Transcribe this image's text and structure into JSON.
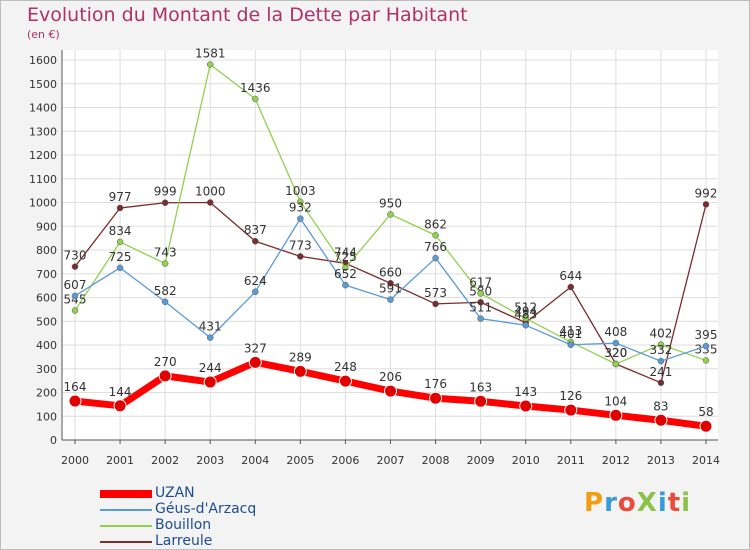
{
  "title": "Evolution du Montant de la Dette par Habitant",
  "subtitle": "(en €)",
  "logo": {
    "text": "ProXiti",
    "colors": [
      "#f39c12",
      "#3a9ad9",
      "#e74c3c",
      "#8bc34a",
      "#3a9ad9",
      "#e74c3c",
      "#8bc34a"
    ]
  },
  "legend": [
    {
      "label": "UZAN",
      "color": "#ff0000",
      "thick": true
    },
    {
      "label": "Géus-d'Arzacq",
      "color": "#5b9bd5",
      "thick": false
    },
    {
      "label": "Bouillon",
      "color": "#92d050",
      "thick": false
    },
    {
      "label": "Larreule",
      "color": "#7b2c2c",
      "thick": false
    }
  ],
  "chart_data": {
    "type": "line",
    "title": "Evolution du Montant de la Dette par Habitant",
    "subtitle": "(en €)",
    "x": [
      "2000",
      "2001",
      "2002",
      "2003",
      "2004",
      "2005",
      "2006",
      "2007",
      "2008",
      "2009",
      "2010",
      "2011",
      "2012",
      "2013",
      "2014"
    ],
    "ylim": [
      0,
      1600
    ],
    "yticks": [
      0,
      100,
      200,
      300,
      400,
      500,
      600,
      700,
      800,
      900,
      1000,
      1100,
      1200,
      1300,
      1400,
      1500,
      1600
    ],
    "grid": true,
    "legend_position": "bottom-left",
    "series": [
      {
        "name": "Larreule",
        "color": "#7b2c2c",
        "values": [
          730,
          977,
          999,
          1000,
          837,
          773,
          744,
          660,
          573,
          580,
          494,
          644,
          320,
          241,
          992
        ]
      },
      {
        "name": "Bouillon",
        "color": "#92d050",
        "values": [
          545,
          834,
          743,
          1581,
          1436,
          1003,
          725,
          950,
          862,
          617,
          512,
          413,
          320,
          402,
          335
        ]
      },
      {
        "name": "Géus-d'Arzacq",
        "color": "#5b9bd5",
        "values": [
          607,
          725,
          582,
          431,
          624,
          932,
          652,
          591,
          766,
          511,
          483,
          401,
          408,
          332,
          395
        ]
      },
      {
        "name": "UZAN",
        "color": "#ff0000",
        "values": [
          164,
          144,
          270,
          244,
          327,
          289,
          248,
          206,
          176,
          163,
          143,
          126,
          104,
          83,
          58
        ]
      }
    ]
  }
}
